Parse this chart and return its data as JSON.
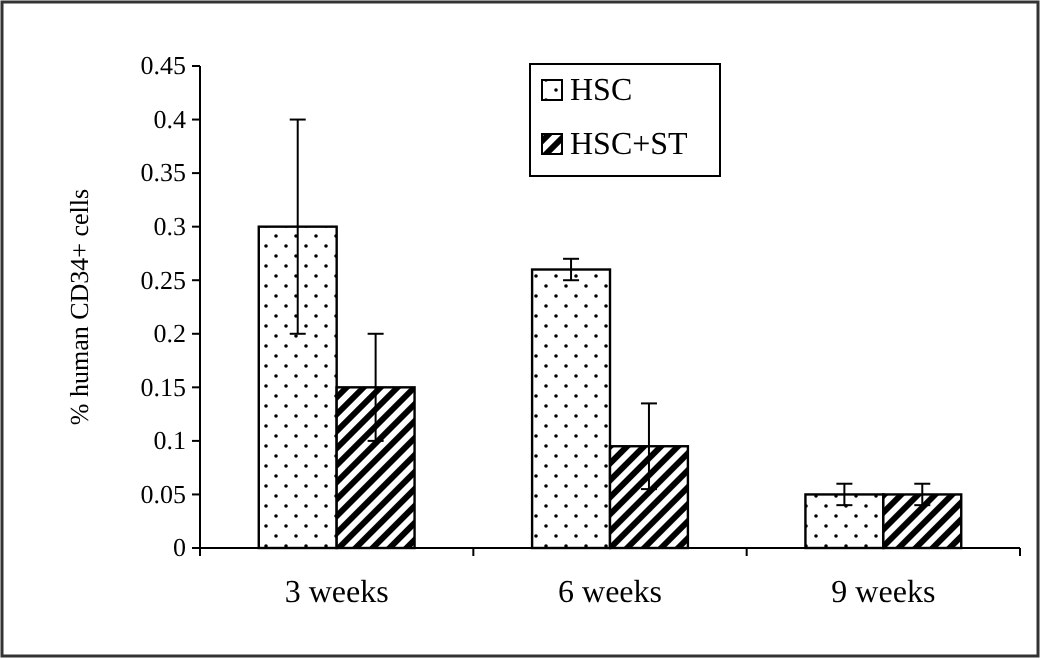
{
  "chart_data": {
    "type": "bar",
    "ylabel": "% human CD34+ cells",
    "categories": [
      "3 weeks",
      "6 weeks",
      "9 weeks"
    ],
    "series": [
      {
        "name": "HSC",
        "color": "#000000",
        "values": [
          0.3,
          0.26,
          0.05
        ],
        "errors": [
          0.1,
          0.01,
          0.01
        ]
      },
      {
        "name": "HSC+ST",
        "color": "#000000",
        "values": [
          0.15,
          0.095,
          0.05
        ],
        "errors": [
          0.05,
          0.04,
          0.01
        ]
      }
    ],
    "ylim": [
      0,
      0.45
    ],
    "yticks": [
      0,
      0.05,
      0.1,
      0.15,
      0.2,
      0.25,
      0.3,
      0.35,
      0.4,
      0.45
    ],
    "legend": "top",
    "grid": false
  }
}
